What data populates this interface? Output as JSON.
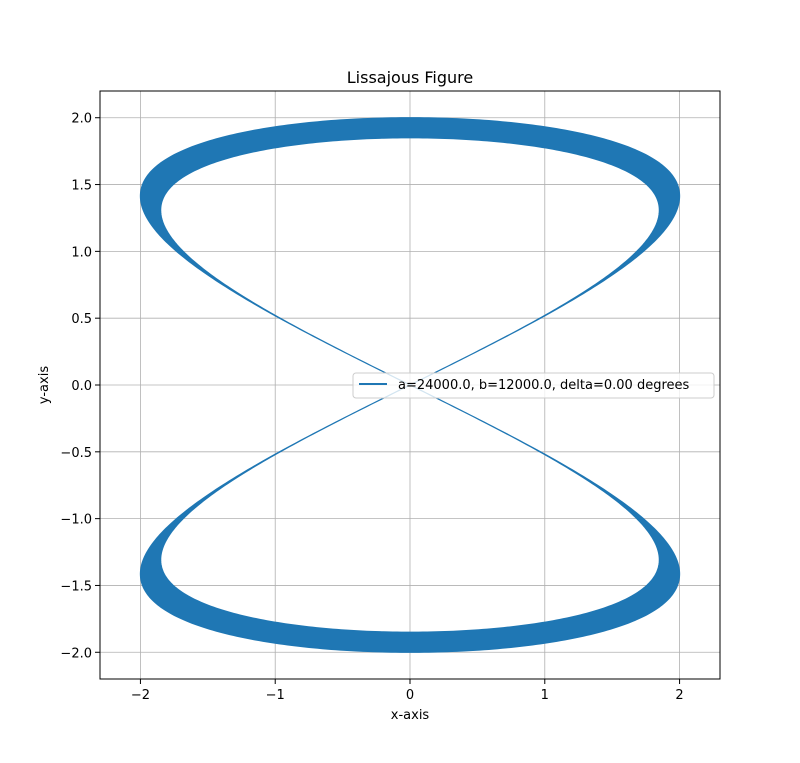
{
  "chart_data": {
    "type": "line",
    "title": "Lissajous Figure",
    "xlabel": "x-axis",
    "ylabel": "y-axis",
    "xlim": [
      -2.3,
      2.3
    ],
    "ylim": [
      -2.2,
      2.2
    ],
    "xticks": [
      -2,
      -1,
      0,
      1,
      2
    ],
    "xtick_labels": [
      "−2",
      "−1",
      "0",
      "1",
      "2"
    ],
    "yticks": [
      2.0,
      1.5,
      1.0,
      0.5,
      0.0,
      -0.5,
      -1.0,
      -1.5,
      -2.0
    ],
    "ytick_labels": [
      "2.0",
      "1.5",
      "1.0",
      "0.5",
      "0.0",
      "−0.5",
      "−1.0",
      "−1.5",
      "−2.0"
    ],
    "grid": true,
    "legend_position": "center-right",
    "series": [
      {
        "name": "a=24000.0, b=12000.0, delta=0.00 degrees",
        "color": "#1f77b4",
        "a": 24000.0,
        "b": 12000.0,
        "delta_degrees": 0.0,
        "amplitude_x": 2.0,
        "amplitude_y": 2.0,
        "inner_amplitude_x": 1.85,
        "inner_amplitude_y": 1.85
      }
    ]
  }
}
